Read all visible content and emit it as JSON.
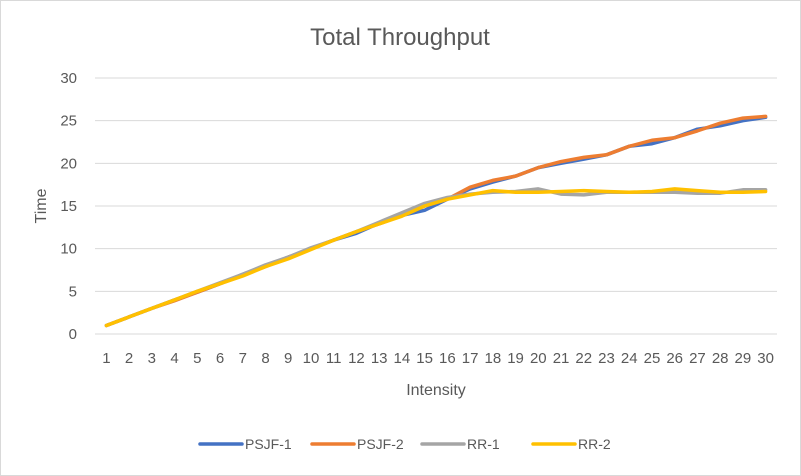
{
  "chart_data": {
    "type": "line",
    "title": "Total Throughput",
    "xlabel": "Intensity",
    "ylabel": "Time",
    "ylim": [
      0,
      30
    ],
    "yticks": [
      0,
      5,
      10,
      15,
      20,
      25,
      30
    ],
    "grid": true,
    "legend_position": "bottom",
    "x": [
      1,
      2,
      3,
      4,
      5,
      6,
      7,
      8,
      9,
      10,
      11,
      12,
      13,
      14,
      15,
      16,
      17,
      18,
      19,
      20,
      21,
      22,
      23,
      24,
      25,
      26,
      27,
      28,
      29,
      30
    ],
    "series": [
      {
        "name": "PSJF-1",
        "color": "#4472C4",
        "values": [
          1,
          2,
          3,
          4,
          4.9,
          5.9,
          7,
          8,
          9,
          10,
          11,
          11.8,
          13,
          13.9,
          14.5,
          15.8,
          17,
          17.8,
          18.5,
          19.5,
          20,
          20.5,
          21,
          22,
          22.3,
          23,
          24,
          24.4,
          25,
          25.4
        ]
      },
      {
        "name": "PSJF-2",
        "color": "#ED7D31",
        "values": [
          1,
          2,
          3,
          3.9,
          4.9,
          5.9,
          6.9,
          7.9,
          9,
          10,
          11,
          12,
          12.9,
          13.9,
          15,
          15.8,
          17.2,
          18,
          18.5,
          19.5,
          20.2,
          20.7,
          21,
          22,
          22.7,
          23,
          23.8,
          24.7,
          25.3,
          25.5
        ]
      },
      {
        "name": "RR-1",
        "color": "#A5A5A5",
        "values": [
          1,
          2,
          3,
          4,
          5,
          6,
          7,
          8.1,
          9,
          10.1,
          11,
          12,
          13.1,
          14.2,
          15.3,
          16,
          16.4,
          16.6,
          16.7,
          17,
          16.4,
          16.3,
          16.6,
          16.6,
          16.6,
          16.6,
          16.5,
          16.5,
          16.9,
          16.9
        ]
      },
      {
        "name": "RR-2",
        "color": "#FFC000",
        "values": [
          1,
          2,
          3,
          4,
          5,
          5.9,
          6.8,
          7.9,
          8.8,
          9.9,
          11,
          12,
          12.9,
          13.8,
          15,
          15.8,
          16.3,
          16.8,
          16.6,
          16.6,
          16.7,
          16.8,
          16.7,
          16.6,
          16.7,
          17,
          16.8,
          16.6,
          16.6,
          16.7
        ]
      }
    ]
  }
}
